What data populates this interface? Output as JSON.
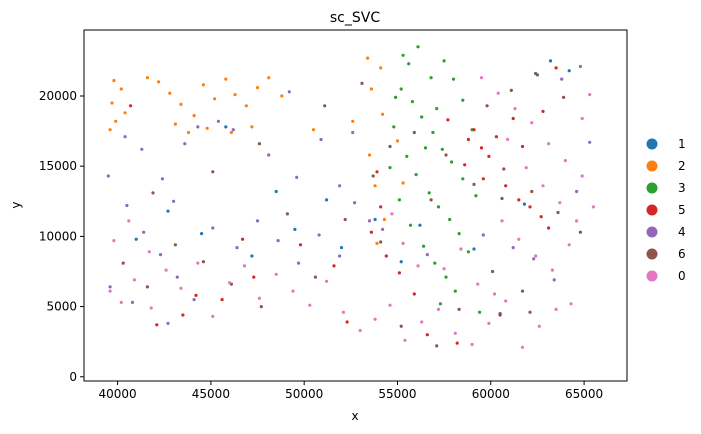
{
  "chart_data": {
    "type": "scatter",
    "title": "sc_SVC",
    "xlabel": "x",
    "ylabel": "y",
    "xlim": [
      38200,
      67300
    ],
    "ylim": [
      -300,
      24700
    ],
    "xticks": [
      40000,
      45000,
      50000,
      55000,
      60000,
      65000
    ],
    "xtick_labels": [
      "40000",
      "45000",
      "50000",
      "55000",
      "60000",
      "65000"
    ],
    "yticks": [
      0,
      5000,
      10000,
      15000,
      20000
    ],
    "ytick_labels": [
      "0",
      "5000",
      "10000",
      "15000",
      "20000"
    ],
    "grid": false,
    "legend_position": "right",
    "series": [
      {
        "name": "1",
        "color": "#1f77b4",
        "values": [
          [
            41000,
            9800
          ],
          [
            44500,
            10200
          ],
          [
            47200,
            8600
          ],
          [
            49500,
            10500
          ],
          [
            52000,
            9200
          ],
          [
            53800,
            11200
          ],
          [
            56200,
            10800
          ],
          [
            60500,
            4500
          ],
          [
            62500,
            21500
          ],
          [
            63200,
            22500
          ],
          [
            64200,
            21800
          ],
          [
            45800,
            17800
          ],
          [
            48500,
            13200
          ],
          [
            42700,
            11800
          ],
          [
            55200,
            8200
          ],
          [
            59100,
            9100
          ],
          [
            51200,
            12600
          ],
          [
            61800,
            12300
          ]
        ]
      },
      {
        "name": "2",
        "color": "#ff7f0e",
        "values": [
          [
            39700,
            19500
          ],
          [
            39900,
            18200
          ],
          [
            40200,
            20500
          ],
          [
            39600,
            17600
          ],
          [
            40400,
            18800
          ],
          [
            39800,
            21100
          ],
          [
            42200,
            21000
          ],
          [
            42800,
            20200
          ],
          [
            43400,
            19400
          ],
          [
            44100,
            18600
          ],
          [
            44600,
            20800
          ],
          [
            45200,
            19800
          ],
          [
            45800,
            21200
          ],
          [
            46300,
            20100
          ],
          [
            46900,
            19300
          ],
          [
            47500,
            20600
          ],
          [
            48100,
            21300
          ],
          [
            43100,
            18000
          ],
          [
            43800,
            17400
          ],
          [
            44800,
            17700
          ],
          [
            46100,
            17400
          ],
          [
            47200,
            17800
          ],
          [
            53500,
            15800
          ],
          [
            53800,
            13600
          ],
          [
            54200,
            18700
          ],
          [
            53600,
            20500
          ],
          [
            54300,
            11200
          ],
          [
            53900,
            9500
          ],
          [
            55000,
            16800
          ],
          [
            55300,
            13800
          ],
          [
            48800,
            20000
          ],
          [
            41600,
            21300
          ],
          [
            50500,
            17600
          ],
          [
            52600,
            18200
          ],
          [
            53400,
            22700
          ],
          [
            54100,
            22000
          ]
        ]
      },
      {
        "name": "3",
        "color": "#2ca02c",
        "values": [
          [
            55200,
            20500
          ],
          [
            55800,
            19600
          ],
          [
            56300,
            18500
          ],
          [
            56900,
            17400
          ],
          [
            57400,
            16200
          ],
          [
            57900,
            15300
          ],
          [
            55500,
            15700
          ],
          [
            56000,
            14400
          ],
          [
            56700,
            13100
          ],
          [
            57200,
            12100
          ],
          [
            57800,
            11200
          ],
          [
            58300,
            10200
          ],
          [
            55100,
            12600
          ],
          [
            55700,
            10800
          ],
          [
            56400,
            9300
          ],
          [
            57000,
            8100
          ],
          [
            57600,
            7100
          ],
          [
            58100,
            6100
          ],
          [
            56800,
            21300
          ],
          [
            57500,
            22500
          ],
          [
            56100,
            23500
          ],
          [
            55600,
            22300
          ],
          [
            58500,
            19700
          ],
          [
            59000,
            17600
          ],
          [
            58500,
            14100
          ],
          [
            59200,
            12900
          ],
          [
            54800,
            17800
          ],
          [
            54600,
            14900
          ],
          [
            55300,
            22900
          ],
          [
            57100,
            19100
          ],
          [
            58000,
            21200
          ],
          [
            56500,
            16300
          ],
          [
            54900,
            19900
          ],
          [
            58800,
            8900
          ],
          [
            57300,
            5200
          ],
          [
            59400,
            4600
          ]
        ]
      },
      {
        "name": "5",
        "color": "#d62728",
        "values": [
          [
            58800,
            16900
          ],
          [
            59100,
            17600
          ],
          [
            59500,
            16300
          ],
          [
            59900,
            15700
          ],
          [
            60300,
            17100
          ],
          [
            58600,
            15100
          ],
          [
            59600,
            14100
          ],
          [
            60800,
            13600
          ],
          [
            61500,
            12600
          ],
          [
            62100,
            12100
          ],
          [
            62700,
            11400
          ],
          [
            63100,
            10600
          ],
          [
            53900,
            14600
          ],
          [
            54100,
            12100
          ],
          [
            53600,
            10300
          ],
          [
            54400,
            8600
          ],
          [
            55100,
            7400
          ],
          [
            60500,
            4400
          ],
          [
            47300,
            7100
          ],
          [
            45600,
            5500
          ],
          [
            44200,
            5800
          ],
          [
            43500,
            4400
          ],
          [
            61200,
            18400
          ],
          [
            62800,
            18900
          ],
          [
            63500,
            22000
          ],
          [
            55900,
            5900
          ],
          [
            52300,
            3900
          ],
          [
            56600,
            3000
          ],
          [
            58200,
            2400
          ],
          [
            42100,
            3700
          ],
          [
            49800,
            9400
          ],
          [
            51600,
            7900
          ],
          [
            46700,
            9800
          ],
          [
            40700,
            19300
          ],
          [
            57700,
            18300
          ],
          [
            61700,
            16400
          ]
        ]
      },
      {
        "name": "4",
        "color": "#9467bd",
        "values": [
          [
            39500,
            14300
          ],
          [
            40500,
            12200
          ],
          [
            41400,
            10300
          ],
          [
            42300,
            8700
          ],
          [
            43200,
            7100
          ],
          [
            44100,
            5500
          ],
          [
            45100,
            10600
          ],
          [
            46400,
            9200
          ],
          [
            47500,
            11100
          ],
          [
            48600,
            9700
          ],
          [
            49700,
            8100
          ],
          [
            50800,
            10100
          ],
          [
            51900,
            8600
          ],
          [
            52700,
            12400
          ],
          [
            53500,
            11100
          ],
          [
            54200,
            10500
          ],
          [
            44300,
            17800
          ],
          [
            45400,
            18200
          ],
          [
            46200,
            17600
          ],
          [
            43600,
            16600
          ],
          [
            42400,
            14100
          ],
          [
            41300,
            16200
          ],
          [
            40400,
            17100
          ],
          [
            48100,
            15800
          ],
          [
            49600,
            14200
          ],
          [
            50900,
            16900
          ],
          [
            51900,
            13600
          ],
          [
            52600,
            17400
          ],
          [
            56600,
            8700
          ],
          [
            59600,
            10100
          ],
          [
            61200,
            9200
          ],
          [
            62300,
            8400
          ],
          [
            63400,
            6900
          ],
          [
            64600,
            13200
          ],
          [
            65300,
            16700
          ],
          [
            63800,
            21200
          ],
          [
            64800,
            22100
          ],
          [
            39600,
            6400
          ],
          [
            40800,
            5300
          ],
          [
            42700,
            3800
          ],
          [
            49200,
            20300
          ],
          [
            43000,
            12500
          ]
        ]
      },
      {
        "name": "6",
        "color": "#8c564b",
        "values": [
          [
            40300,
            8100
          ],
          [
            41600,
            6400
          ],
          [
            43100,
            9400
          ],
          [
            44600,
            8200
          ],
          [
            46100,
            6600
          ],
          [
            47700,
            5000
          ],
          [
            49100,
            11600
          ],
          [
            50600,
            7100
          ],
          [
            52200,
            11200
          ],
          [
            53700,
            14300
          ],
          [
            54600,
            16400
          ],
          [
            55900,
            17400
          ],
          [
            57600,
            15800
          ],
          [
            59100,
            13700
          ],
          [
            60600,
            12700
          ],
          [
            62200,
            13200
          ],
          [
            63600,
            11700
          ],
          [
            64800,
            10300
          ],
          [
            59800,
            19300
          ],
          [
            61100,
            20400
          ],
          [
            62400,
            21600
          ],
          [
            63900,
            19900
          ],
          [
            60100,
            7500
          ],
          [
            61700,
            6100
          ],
          [
            58300,
            4800
          ],
          [
            62100,
            4600
          ],
          [
            55200,
            3600
          ],
          [
            57100,
            2200
          ],
          [
            45100,
            14600
          ],
          [
            47600,
            16600
          ],
          [
            51100,
            19300
          ],
          [
            53100,
            20900
          ],
          [
            60700,
            14800
          ],
          [
            56800,
            12600
          ],
          [
            54100,
            9600
          ],
          [
            41900,
            13100
          ]
        ]
      },
      {
        "name": "0",
        "color": "#e377c2",
        "values": [
          [
            39600,
            6100
          ],
          [
            40200,
            5300
          ],
          [
            40900,
            6900
          ],
          [
            41800,
            4900
          ],
          [
            42600,
            7600
          ],
          [
            43400,
            6300
          ],
          [
            44300,
            8100
          ],
          [
            45100,
            4300
          ],
          [
            46000,
            6700
          ],
          [
            46800,
            7900
          ],
          [
            47600,
            5600
          ],
          [
            48500,
            7300
          ],
          [
            49400,
            6100
          ],
          [
            50300,
            5100
          ],
          [
            51200,
            6800
          ],
          [
            52100,
            4600
          ],
          [
            53000,
            3300
          ],
          [
            53800,
            4100
          ],
          [
            54600,
            5100
          ],
          [
            55400,
            2600
          ],
          [
            56300,
            3900
          ],
          [
            57200,
            4800
          ],
          [
            58100,
            3100
          ],
          [
            59000,
            2300
          ],
          [
            59900,
            3800
          ],
          [
            60800,
            5400
          ],
          [
            61700,
            2100
          ],
          [
            62600,
            3600
          ],
          [
            63500,
            4800
          ],
          [
            64300,
            5200
          ],
          [
            59500,
            21300
          ],
          [
            60400,
            20200
          ],
          [
            61300,
            19100
          ],
          [
            62200,
            18100
          ],
          [
            63100,
            16600
          ],
          [
            64000,
            15400
          ],
          [
            64900,
            14300
          ],
          [
            65500,
            12100
          ],
          [
            60900,
            16900
          ],
          [
            61900,
            14900
          ],
          [
            62800,
            13600
          ],
          [
            63700,
            12400
          ],
          [
            64600,
            11100
          ],
          [
            65300,
            20100
          ],
          [
            64900,
            18400
          ],
          [
            60600,
            11100
          ],
          [
            61500,
            9800
          ],
          [
            62400,
            8600
          ],
          [
            63300,
            7600
          ],
          [
            64200,
            9400
          ],
          [
            58400,
            9100
          ],
          [
            57500,
            7700
          ],
          [
            59300,
            6600
          ],
          [
            60200,
            5900
          ],
          [
            54700,
            11600
          ],
          [
            55300,
            9500
          ],
          [
            56100,
            7900
          ],
          [
            39800,
            9700
          ],
          [
            40600,
            11100
          ],
          [
            41700,
            8900
          ]
        ]
      }
    ]
  }
}
